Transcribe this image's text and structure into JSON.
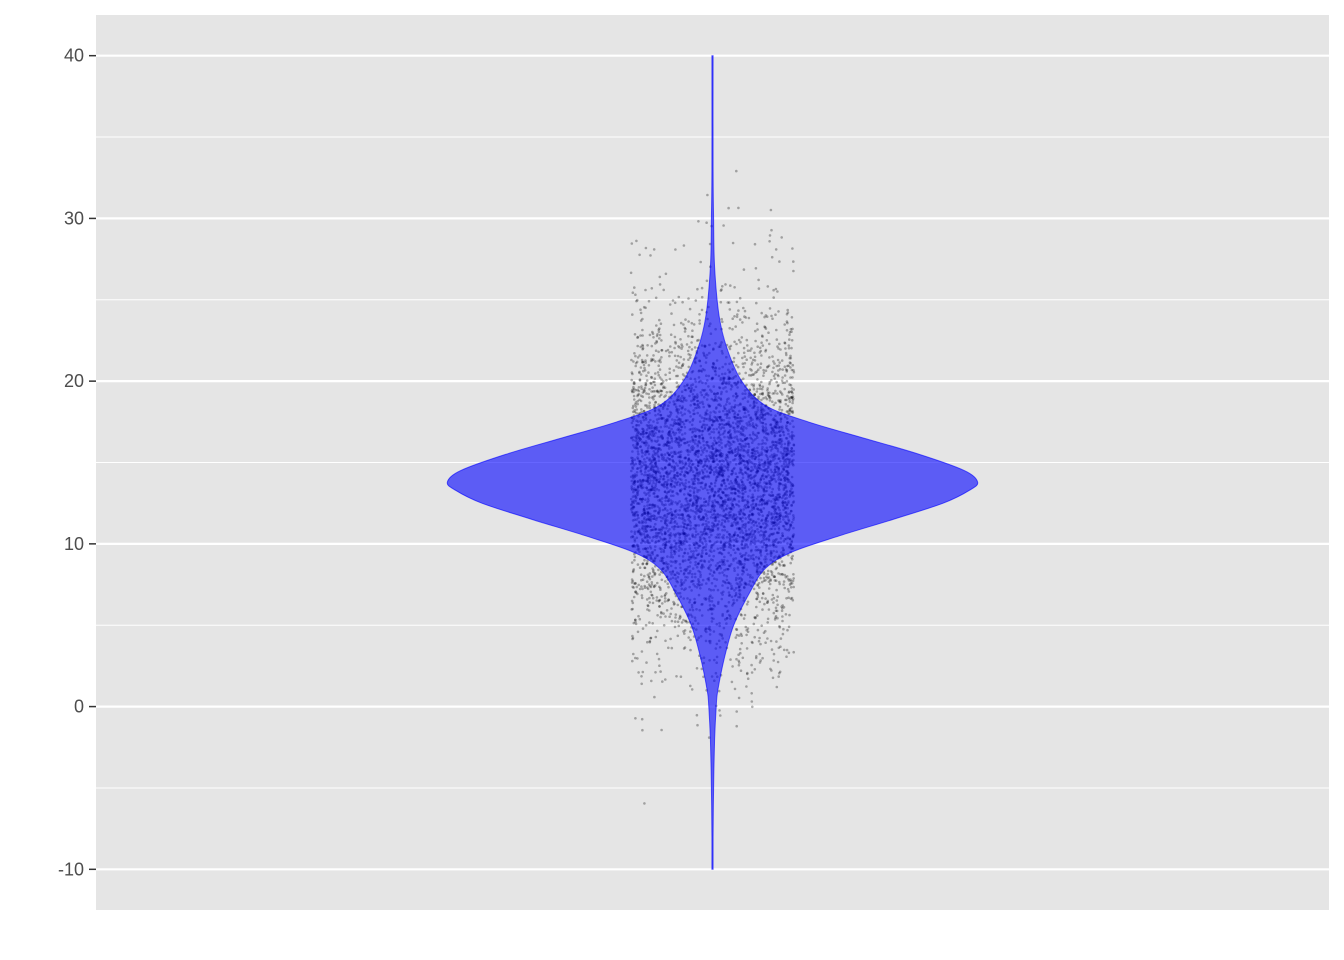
{
  "chart_data": {
    "type": "violin",
    "title": "",
    "xlabel": "",
    "ylabel": "",
    "ylim": [
      -12.5,
      42.5
    ],
    "y_ticks": [
      -10,
      0,
      10,
      20,
      30,
      40
    ],
    "y_tick_labels": [
      "-10",
      "0",
      "10",
      "20",
      "30",
      "40"
    ],
    "grid": true,
    "legend": "none",
    "violin": {
      "center": 0,
      "mode": 13.8,
      "y_min": -10,
      "y_max": 40,
      "half_width_at_mode": 1.0,
      "profile": [
        {
          "y": -10,
          "w": 0.0
        },
        {
          "y": -8,
          "w": 0.002
        },
        {
          "y": -5,
          "w": 0.004
        },
        {
          "y": -2,
          "w": 0.008
        },
        {
          "y": 0,
          "w": 0.014
        },
        {
          "y": 1,
          "w": 0.02
        },
        {
          "y": 3,
          "w": 0.045
        },
        {
          "y": 5,
          "w": 0.08
        },
        {
          "y": 7,
          "w": 0.14
        },
        {
          "y": 8.5,
          "w": 0.2
        },
        {
          "y": 9.5,
          "w": 0.3
        },
        {
          "y": 10.5,
          "w": 0.48
        },
        {
          "y": 11.5,
          "w": 0.68
        },
        {
          "y": 12.5,
          "w": 0.87
        },
        {
          "y": 13.3,
          "w": 0.97
        },
        {
          "y": 13.8,
          "w": 1.0
        },
        {
          "y": 14.5,
          "w": 0.95
        },
        {
          "y": 15.5,
          "w": 0.78
        },
        {
          "y": 16.5,
          "w": 0.57
        },
        {
          "y": 17.5,
          "w": 0.36
        },
        {
          "y": 18.5,
          "w": 0.2
        },
        {
          "y": 20,
          "w": 0.11
        },
        {
          "y": 22,
          "w": 0.055
        },
        {
          "y": 24,
          "w": 0.025
        },
        {
          "y": 27,
          "w": 0.008
        },
        {
          "y": 30,
          "w": 0.004
        },
        {
          "y": 33,
          "w": 0.002
        },
        {
          "y": 40,
          "w": 0.0
        }
      ]
    },
    "points": {
      "count": 5000,
      "mean": 14,
      "sd": 5,
      "y_min": -10,
      "y_max": 40,
      "jitter_half_width": 0.33
    },
    "colors": {
      "panel": "#e5e5e5",
      "grid": "#ffffff",
      "violin_fill": "#0000ff",
      "violin_opacity": 0.6,
      "points": "#000000",
      "axis_text": "#4d4d4d",
      "tick": "#333333"
    }
  }
}
